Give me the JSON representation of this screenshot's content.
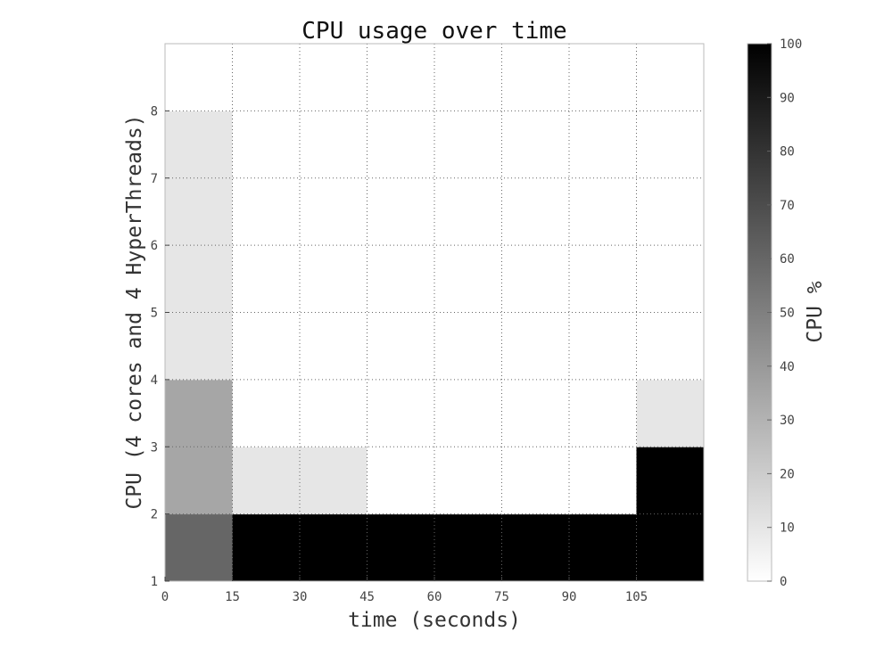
{
  "chart_data": {
    "type": "heatmap",
    "title": "CPU usage over time",
    "xlabel": "time (seconds)",
    "ylabel": "CPU (4 cores and 4 HyperThreads)",
    "xlim": [
      0,
      120
    ],
    "ylim": [
      1,
      9
    ],
    "xticks": [
      0,
      15,
      30,
      45,
      60,
      75,
      90,
      105
    ],
    "yticks": [
      1,
      2,
      3,
      4,
      5,
      6,
      7,
      8
    ],
    "grid": true,
    "colormap": "gray_r",
    "colorbar": {
      "label": "CPU %",
      "range": [
        0,
        100
      ],
      "ticks": [
        0,
        10,
        20,
        30,
        40,
        50,
        60,
        70,
        80,
        90,
        100
      ],
      "position": "right"
    },
    "x_bins": [
      0,
      15,
      30,
      45,
      60,
      75,
      90,
      105,
      120
    ],
    "y_bins": [
      1,
      2,
      3,
      4,
      5,
      6,
      7,
      8,
      9
    ],
    "cpu_rows": [
      {
        "cpu": 1,
        "values": [
          60,
          100,
          100,
          100,
          100,
          100,
          100,
          100
        ]
      },
      {
        "cpu": 2,
        "values": [
          35,
          10,
          10,
          0,
          0,
          0,
          0,
          100
        ]
      },
      {
        "cpu": 3,
        "values": [
          35,
          0,
          0,
          0,
          0,
          0,
          0,
          10
        ]
      },
      {
        "cpu": 4,
        "values": [
          10,
          0,
          0,
          0,
          0,
          0,
          0,
          0
        ]
      },
      {
        "cpu": 5,
        "values": [
          10,
          0,
          0,
          0,
          0,
          0,
          0,
          0
        ]
      },
      {
        "cpu": 6,
        "values": [
          10,
          0,
          0,
          0,
          0,
          0,
          0,
          0
        ]
      },
      {
        "cpu": 7,
        "values": [
          10,
          0,
          0,
          0,
          0,
          0,
          0,
          0
        ]
      },
      {
        "cpu": 8,
        "values": [
          0,
          0,
          0,
          0,
          0,
          0,
          0,
          0
        ]
      }
    ]
  }
}
